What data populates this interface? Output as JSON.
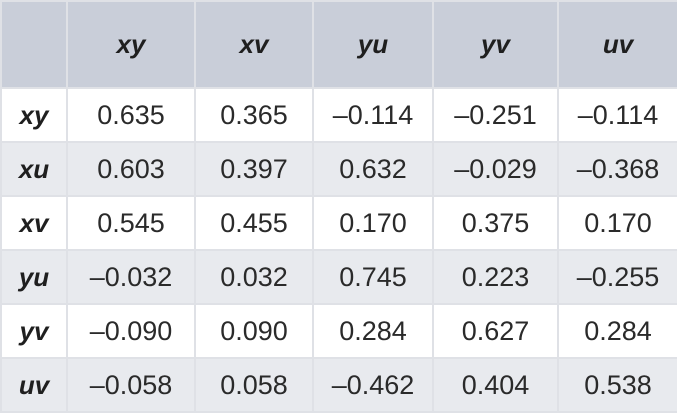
{
  "table": {
    "corner": "",
    "columns": [
      "xy",
      "xv",
      "yu",
      "yv",
      "uv"
    ],
    "rows": [
      {
        "label": "xy",
        "cells": [
          "0.635",
          "0.365",
          "–0.114",
          "–0.251",
          "–0.114"
        ]
      },
      {
        "label": "xu",
        "cells": [
          "0.603",
          "0.397",
          "0.632",
          "–0.029",
          "–0.368"
        ]
      },
      {
        "label": "xv",
        "cells": [
          "0.545",
          "0.455",
          "0.170",
          "0.375",
          "0.170"
        ]
      },
      {
        "label": "yu",
        "cells": [
          "–0.032",
          "0.032",
          "0.745",
          "0.223",
          "–0.255"
        ]
      },
      {
        "label": "yv",
        "cells": [
          "–0.090",
          "0.090",
          "0.284",
          "0.627",
          "0.284"
        ]
      },
      {
        "label": "uv",
        "cells": [
          "–0.058",
          "0.058",
          "–0.462",
          "0.404",
          "0.538"
        ]
      }
    ]
  },
  "colors": {
    "header_bg": "#c9ced9",
    "row_even_bg": "#e8eaee",
    "row_odd_bg": "#ffffff",
    "border": "#dfe1e6"
  }
}
